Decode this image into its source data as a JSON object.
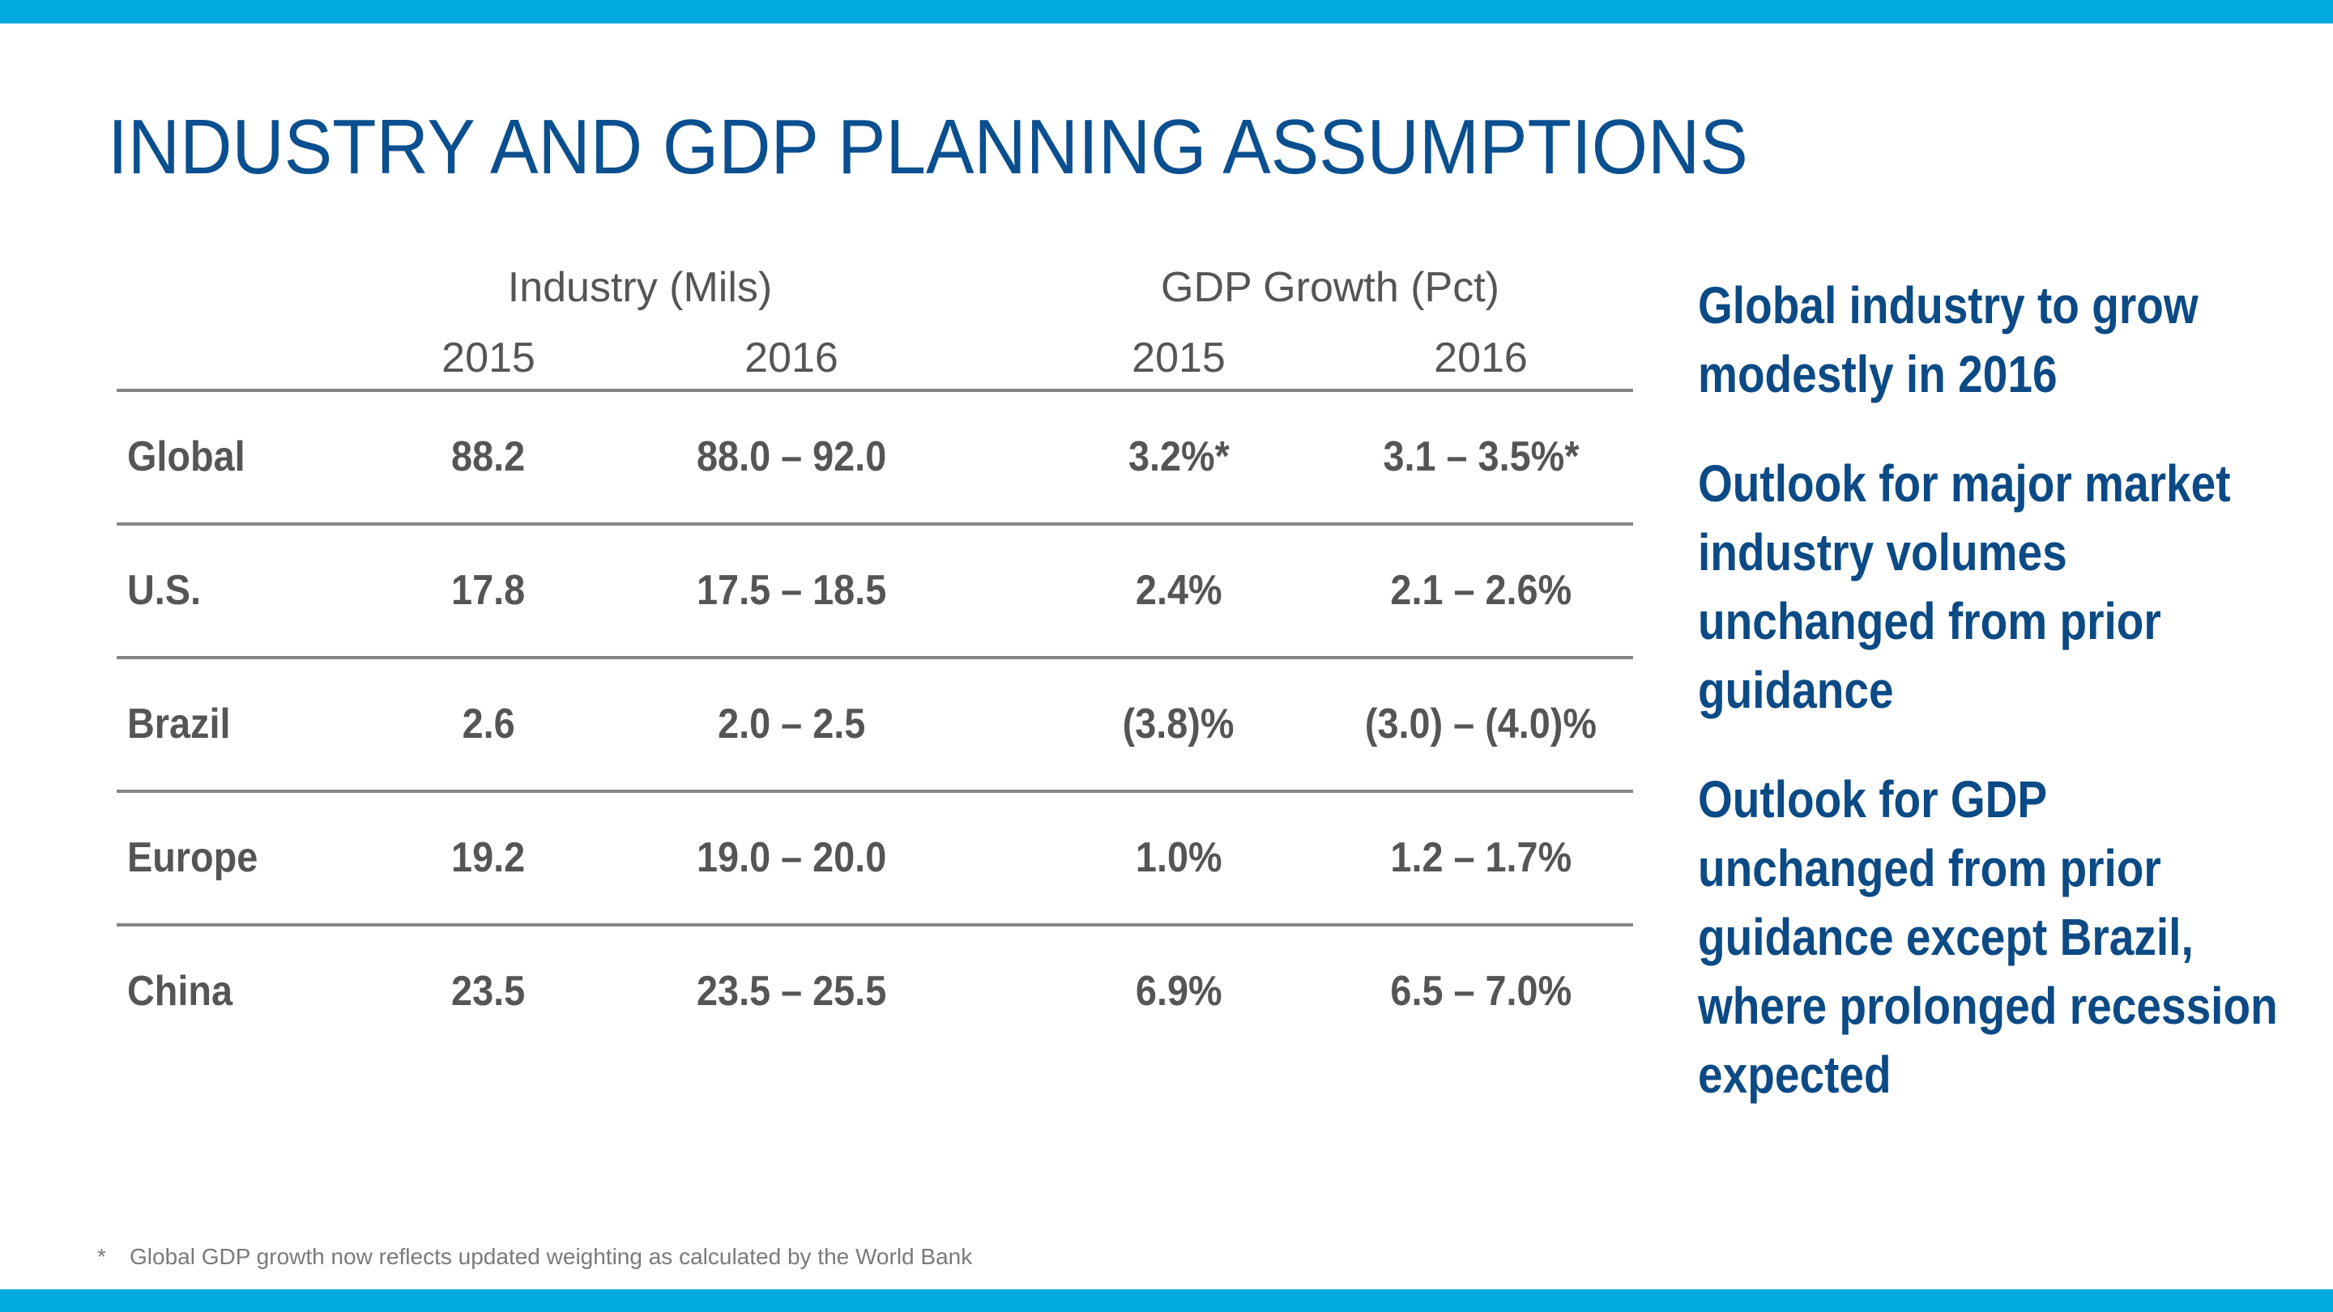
{
  "slide": {
    "title": "INDUSTRY AND GDP PLANNING ASSUMPTIONS",
    "colors": {
      "accent_bar": "#00aadf",
      "title": "#0a4f8f",
      "notes_text": "#0b4a85",
      "table_text": "#555555",
      "rule": "#858585",
      "footnote": "#7a7a7a"
    }
  },
  "table": {
    "group_headers": [
      "Industry (Mils)",
      "GDP Growth (Pct)"
    ],
    "year_headers": [
      "2015",
      "2016",
      "2015",
      "2016"
    ],
    "rows": [
      {
        "label": "Global",
        "values": [
          "88.2",
          "88.0 – 92.0",
          "3.2%*",
          "3.1 – 3.5%*"
        ]
      },
      {
        "label": "U.S.",
        "values": [
          "17.8",
          "17.5 – 18.5",
          "2.4%",
          "2.1 – 2.6%"
        ]
      },
      {
        "label": "Brazil",
        "values": [
          "2.6",
          "2.0 – 2.5",
          "(3.8)%",
          "(3.0) – (4.0)%"
        ]
      },
      {
        "label": "Europe",
        "values": [
          "19.2",
          "19.0 – 20.0",
          "1.0%",
          "1.2 – 1.7%"
        ]
      },
      {
        "label": "China",
        "values": [
          "23.5",
          "23.5 – 25.5",
          "6.9%",
          "6.5 – 7.0%"
        ]
      }
    ]
  },
  "notes": [
    {
      "lines": [
        "Global industry to grow",
        "modestly in 2016"
      ]
    },
    {
      "lines": [
        "Outlook for major market",
        "industry volumes",
        "unchanged from prior",
        "guidance"
      ]
    },
    {
      "lines": [
        "Outlook for GDP",
        "unchanged from prior",
        "guidance except Brazil,",
        "where prolonged recession",
        "expected"
      ]
    }
  ],
  "footnote": {
    "mark": "*",
    "text": "Global GDP growth now reflects updated weighting as calculated by the World Bank"
  }
}
